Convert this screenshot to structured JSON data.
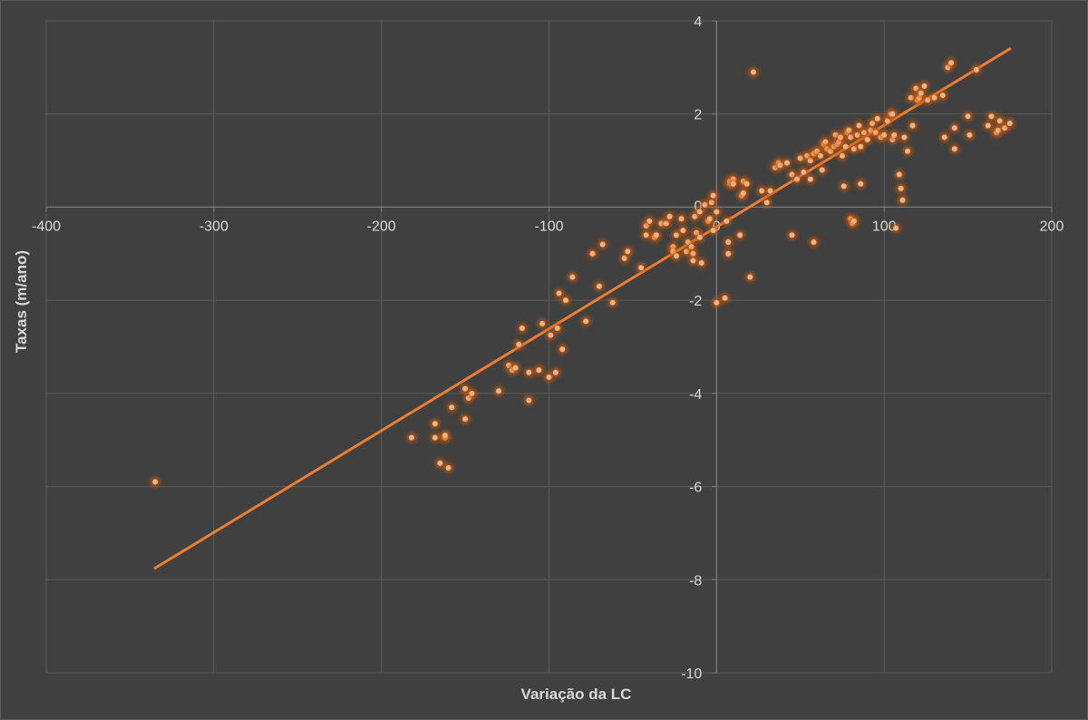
{
  "chart_data": {
    "type": "scatter",
    "title": "",
    "xlabel": "Variação da LC",
    "ylabel": "Taxas (m/ano)",
    "xlim": [
      -400,
      200
    ],
    "ylim": [
      -10,
      4
    ],
    "xticks": [
      -400,
      -300,
      -200,
      -100,
      0,
      100,
      200
    ],
    "yticks": [
      4,
      2,
      0,
      -2,
      -4,
      -6,
      -8,
      -10
    ],
    "xtick_labels": [
      "-400",
      "-300",
      "-200",
      "-100",
      "0",
      "100",
      "200"
    ],
    "ytick_labels": [
      "4",
      "2",
      "0",
      "-2",
      "-4",
      "-6",
      "-8",
      "-10"
    ],
    "grid": true,
    "legend": "none",
    "colors": {
      "background": "#404040",
      "grid": "#5c5c5c",
      "axis": "#7f7f7f",
      "points": "#f4b183",
      "point_glow": "#c55a11",
      "trendline": "#ed7d31"
    },
    "trendline": {
      "x": [
        -335,
        175
      ],
      "y": [
        -7.75,
        3.4
      ]
    },
    "points": [
      [
        -335,
        -5.9
      ],
      [
        -182,
        -4.95
      ],
      [
        -168,
        -4.65
      ],
      [
        -168,
        -4.95
      ],
      [
        -165,
        -5.5
      ],
      [
        -162,
        -4.95
      ],
      [
        -160,
        -5.6
      ],
      [
        -162,
        -4.9
      ],
      [
        -158,
        -4.3
      ],
      [
        -150,
        -4.55
      ],
      [
        -150,
        -3.9
      ],
      [
        -148,
        -4.1
      ],
      [
        -146,
        -4.0
      ],
      [
        -130,
        -3.95
      ],
      [
        -124,
        -3.4
      ],
      [
        -122,
        -3.5
      ],
      [
        -120,
        -3.45
      ],
      [
        -118,
        -2.95
      ],
      [
        -116,
        -2.6
      ],
      [
        -112,
        -3.55
      ],
      [
        -112,
        -4.15
      ],
      [
        -106,
        -3.5
      ],
      [
        -104,
        -2.5
      ],
      [
        -100,
        -3.65
      ],
      [
        -99,
        -2.75
      ],
      [
        -96,
        -3.55
      ],
      [
        -95,
        -2.6
      ],
      [
        -94,
        -1.85
      ],
      [
        -92,
        -3.05
      ],
      [
        -90,
        -2.0
      ],
      [
        -86,
        -1.5
      ],
      [
        -78,
        -2.45
      ],
      [
        -74,
        -1.0
      ],
      [
        -70,
        -1.7
      ],
      [
        -68,
        -0.8
      ],
      [
        -62,
        -2.05
      ],
      [
        -55,
        -1.1
      ],
      [
        -53,
        -0.95
      ],
      [
        -45,
        -1.3
      ],
      [
        -42,
        -0.4
      ],
      [
        -42,
        -0.6
      ],
      [
        -40,
        -0.3
      ],
      [
        -37,
        -0.65
      ],
      [
        -36,
        -0.6
      ],
      [
        -33,
        -0.35
      ],
      [
        -30,
        -0.35
      ],
      [
        -28,
        -0.2
      ],
      [
        -26,
        -0.85
      ],
      [
        -26,
        -0.95
      ],
      [
        -24,
        -1.05
      ],
      [
        -24,
        -0.6
      ],
      [
        -21,
        -0.25
      ],
      [
        -20,
        -0.5
      ],
      [
        -18,
        -0.95
      ],
      [
        -17,
        -0.75
      ],
      [
        -15,
        -0.85
      ],
      [
        -14,
        -1.0
      ],
      [
        -14,
        -1.15
      ],
      [
        -13,
        -0.2
      ],
      [
        -12,
        -0.55
      ],
      [
        -10,
        -0.65
      ],
      [
        -10,
        -0.1
      ],
      [
        -9,
        -1.2
      ],
      [
        -7,
        0.05
      ],
      [
        -5,
        -0.3
      ],
      [
        -4,
        -0.25
      ],
      [
        -3,
        0.1
      ],
      [
        -2,
        -0.5
      ],
      [
        -2,
        0.25
      ],
      [
        0,
        -0.1
      ],
      [
        0,
        -2.05
      ],
      [
        5,
        -1.95
      ],
      [
        6,
        -0.3
      ],
      [
        7,
        -0.75
      ],
      [
        7,
        -1.0
      ],
      [
        8,
        0.5
      ],
      [
        8,
        0.55
      ],
      [
        10,
        0.6
      ],
      [
        10,
        0.5
      ],
      [
        15,
        0.25
      ],
      [
        16,
        0.55
      ],
      [
        16,
        0.3
      ],
      [
        18,
        0.5
      ],
      [
        20,
        -1.5
      ],
      [
        14,
        -0.6
      ],
      [
        22,
        2.9
      ],
      [
        27,
        0.35
      ],
      [
        30,
        0.1
      ],
      [
        32,
        0.35
      ],
      [
        35,
        0.85
      ],
      [
        37,
        0.95
      ],
      [
        38,
        0.9
      ],
      [
        42,
        0.95
      ],
      [
        45,
        0.7
      ],
      [
        45,
        -0.6
      ],
      [
        48,
        0.6
      ],
      [
        50,
        1.05
      ],
      [
        52,
        0.75
      ],
      [
        54,
        1.1
      ],
      [
        56,
        1.0
      ],
      [
        56,
        0.6
      ],
      [
        58,
        1.15
      ],
      [
        58,
        -0.75
      ],
      [
        60,
        1.2
      ],
      [
        62,
        1.1
      ],
      [
        63,
        0.8
      ],
      [
        64,
        1.35
      ],
      [
        65,
        1.4
      ],
      [
        66,
        1.25
      ],
      [
        68,
        1.2
      ],
      [
        70,
        1.3
      ],
      [
        71,
        1.55
      ],
      [
        72,
        1.35
      ],
      [
        73,
        1.4
      ],
      [
        74,
        1.5
      ],
      [
        75,
        1.1
      ],
      [
        76,
        0.45
      ],
      [
        77,
        1.3
      ],
      [
        78,
        1.6
      ],
      [
        79,
        1.65
      ],
      [
        80,
        1.5
      ],
      [
        80,
        -0.25
      ],
      [
        81,
        -0.35
      ],
      [
        82,
        -0.3
      ],
      [
        82,
        1.25
      ],
      [
        84,
        1.55
      ],
      [
        85,
        1.75
      ],
      [
        86,
        1.3
      ],
      [
        86,
        0.5
      ],
      [
        88,
        1.6
      ],
      [
        90,
        1.45
      ],
      [
        92,
        1.65
      ],
      [
        93,
        1.8
      ],
      [
        95,
        1.6
      ],
      [
        96,
        1.9
      ],
      [
        98,
        1.5
      ],
      [
        100,
        1.55
      ],
      [
        102,
        1.85
      ],
      [
        104,
        2.0
      ],
      [
        105,
        1.45
      ],
      [
        105,
        2.0
      ],
      [
        106,
        1.55
      ],
      [
        107,
        -0.45
      ],
      [
        109,
        0.7
      ],
      [
        110,
        0.4
      ],
      [
        111,
        0.15
      ],
      [
        112,
        1.5
      ],
      [
        114,
        1.2
      ],
      [
        116,
        2.35
      ],
      [
        117,
        1.75
      ],
      [
        119,
        2.55
      ],
      [
        120,
        2.3
      ],
      [
        121,
        2.35
      ],
      [
        122,
        2.45
      ],
      [
        124,
        2.6
      ],
      [
        126,
        2.3
      ],
      [
        130,
        2.35
      ],
      [
        135,
        2.4
      ],
      [
        136,
        1.5
      ],
      [
        138,
        3.0
      ],
      [
        140,
        3.1
      ],
      [
        142,
        1.25
      ],
      [
        142,
        1.7
      ],
      [
        150,
        1.95
      ],
      [
        151,
        1.55
      ],
      [
        155,
        2.95
      ],
      [
        162,
        1.75
      ],
      [
        164,
        1.95
      ],
      [
        167,
        1.6
      ],
      [
        168,
        1.65
      ],
      [
        169,
        1.85
      ],
      [
        172,
        1.7
      ],
      [
        175,
        1.8
      ]
    ]
  }
}
